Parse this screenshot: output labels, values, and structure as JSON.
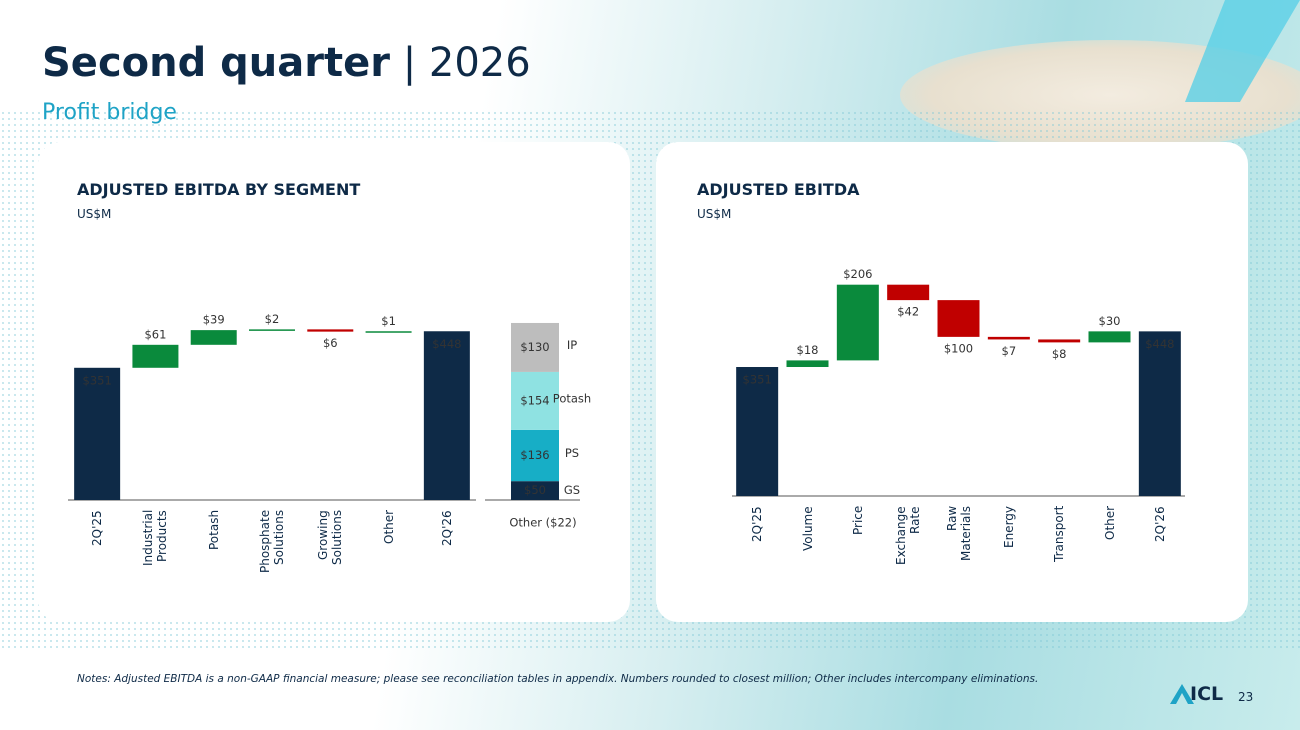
{
  "header": {
    "title": "Second quarter",
    "separator": "|",
    "year": "2026",
    "subtitle": "Profit bridge"
  },
  "chart_data": [
    {
      "type": "waterfall",
      "title": "ADJUSTED EBITDA BY SEGMENT",
      "subtitle": "US$M",
      "categories": [
        "2Q'25",
        "Industrial Products",
        "Potash",
        "Phosphate Solutions",
        "Growing Solutions",
        "Other",
        "2Q'26"
      ],
      "values": [
        351,
        61,
        39,
        2,
        -6,
        1,
        448
      ],
      "value_labels": [
        "$351",
        "$61",
        "$39",
        "$2",
        "$6",
        "$1",
        "$448"
      ],
      "colors": {
        "total": "#0e2a47",
        "increase": "#0a8a3c",
        "decrease": "#c00000"
      },
      "ylim": [
        0,
        600
      ],
      "breakdown": {
        "series": [
          {
            "name": "GS",
            "color": "#0e2a47",
            "values": [
              50
            ],
            "value_labels": [
              "$50"
            ]
          },
          {
            "name": "PS",
            "color": "#17aec6",
            "values": [
              136
            ],
            "value_labels": [
              "$136"
            ]
          },
          {
            "name": "Potash",
            "color": "#8fe2e2",
            "values": [
              154
            ],
            "value_labels": [
              "$154"
            ]
          },
          {
            "name": "IP",
            "color": "#bdbdbd",
            "values": [
              130
            ],
            "value_labels": [
              "$130"
            ]
          }
        ],
        "note": "Other ($22)"
      }
    },
    {
      "type": "waterfall",
      "title": "ADJUSTED EBITDA",
      "subtitle": "US$M",
      "categories": [
        "2Q'25",
        "Volume",
        "Price",
        "Exchange Rate",
        "Raw Materials",
        "Energy",
        "Transport",
        "Other",
        "2Q'26"
      ],
      "values": [
        351,
        18,
        206,
        -42,
        -100,
        -7,
        -8,
        30,
        448
      ],
      "value_labels": [
        "$351",
        "$18",
        "$206",
        "$42",
        "$100",
        "$7",
        "$8",
        "$30",
        "$448"
      ],
      "colors": {
        "total": "#0e2a47",
        "increase": "#0a8a3c",
        "decrease": "#c00000"
      },
      "ylim": [
        0,
        600
      ]
    }
  ],
  "notes": "Notes: Adjusted EBITDA is a non-GAAP financial measure; please see reconciliation tables in appendix. Numbers rounded to closest million; Other includes intercompany eliminations.",
  "logo": "ICL",
  "page_number": "23"
}
